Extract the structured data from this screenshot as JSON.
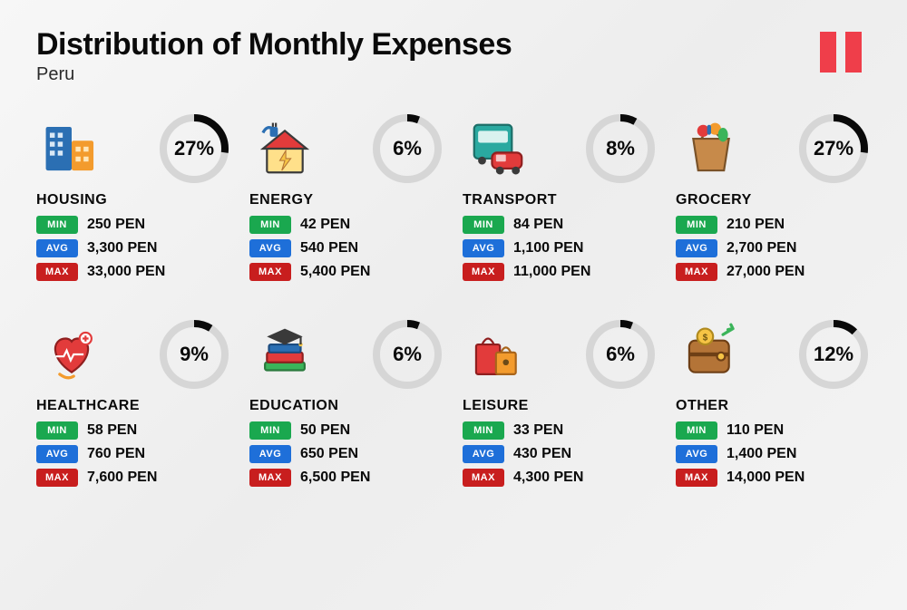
{
  "title": "Distribution of Monthly Expenses",
  "subtitle": "Peru",
  "flag": {
    "bar_color": "#ef3e4a",
    "bg": "#ffffff"
  },
  "colors": {
    "min_badge": "#1aa84f",
    "avg_badge": "#1e6fd9",
    "max_badge": "#c81e1e",
    "ring_fg": "#0a0a0a",
    "ring_bg": "#d6d6d6",
    "text": "#0a0a0a"
  },
  "labels": {
    "min": "MIN",
    "avg": "AVG",
    "max": "MAX"
  },
  "currency": "PEN",
  "ring": {
    "radius": 34,
    "stroke_width": 8,
    "size": 82
  },
  "categories": [
    {
      "key": "housing",
      "name": "HOUSING",
      "percent": 27,
      "min": "250",
      "avg": "3,300",
      "max": "33,000",
      "icon": "housing"
    },
    {
      "key": "energy",
      "name": "ENERGY",
      "percent": 6,
      "min": "42",
      "avg": "540",
      "max": "5,400",
      "icon": "energy"
    },
    {
      "key": "transport",
      "name": "TRANSPORT",
      "percent": 8,
      "min": "84",
      "avg": "1,100",
      "max": "11,000",
      "icon": "transport"
    },
    {
      "key": "grocery",
      "name": "GROCERY",
      "percent": 27,
      "min": "210",
      "avg": "2,700",
      "max": "27,000",
      "icon": "grocery"
    },
    {
      "key": "healthcare",
      "name": "HEALTHCARE",
      "percent": 9,
      "min": "58",
      "avg": "760",
      "max": "7,600",
      "icon": "healthcare"
    },
    {
      "key": "education",
      "name": "EDUCATION",
      "percent": 6,
      "min": "50",
      "avg": "650",
      "max": "6,500",
      "icon": "education"
    },
    {
      "key": "leisure",
      "name": "LEISURE",
      "percent": 6,
      "min": "33",
      "avg": "430",
      "max": "4,300",
      "icon": "leisure"
    },
    {
      "key": "other",
      "name": "OTHER",
      "percent": 12,
      "min": "110",
      "avg": "1,400",
      "max": "14,000",
      "icon": "other"
    }
  ],
  "icon_palette": {
    "blue": "#2b6fb3",
    "darkblue": "#1c4c80",
    "orange": "#f39b2d",
    "red": "#e23b3b",
    "yellow": "#f6c445",
    "green": "#3bb45a",
    "teal": "#2aa9a0",
    "brown": "#b47437",
    "pink": "#f06e8d",
    "purple": "#5a4a9c",
    "gray": "#5a5a5a",
    "light": "#d9e8f5"
  }
}
